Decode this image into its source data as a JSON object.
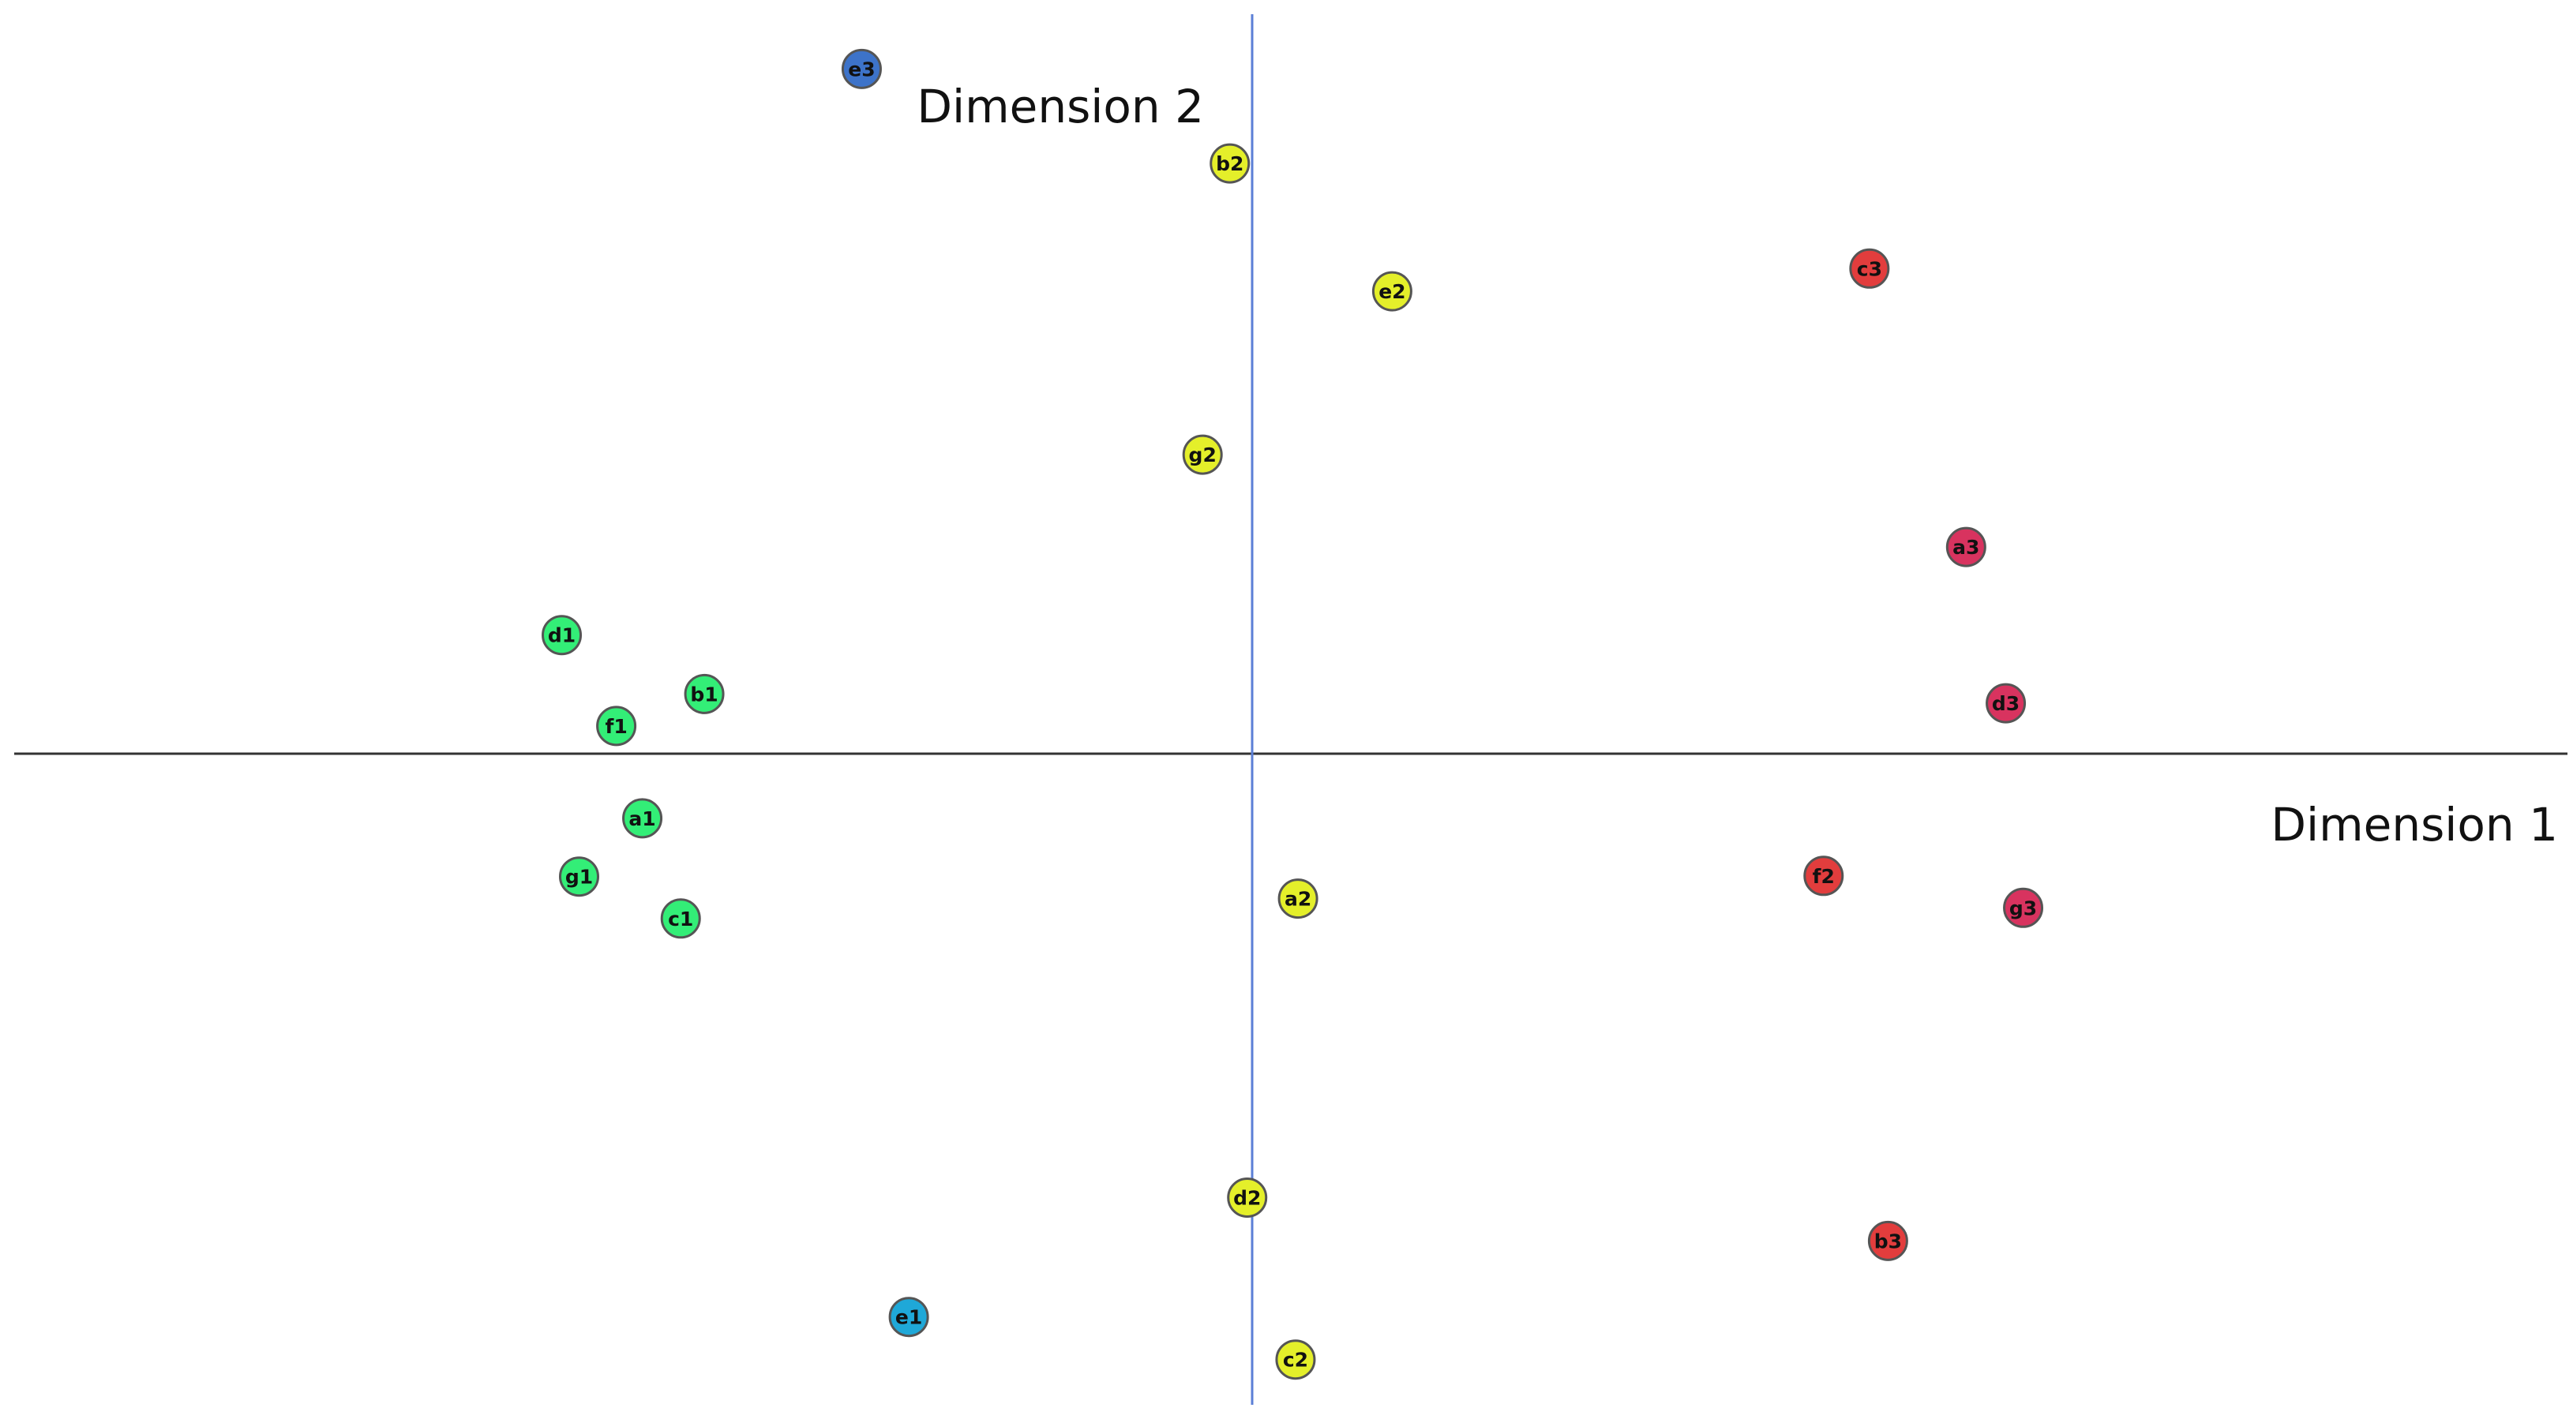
{
  "chart_data": {
    "type": "scatter",
    "xlabel": "Dimension 1",
    "ylabel": "Dimension 2",
    "xlim": [
      -1.0,
      1.06
    ],
    "ylim": [
      -1.05,
      1.19
    ],
    "grid": false,
    "colors": {
      "green": "#33ee77",
      "yellow": "#e4ef2a",
      "red": "#e23d3d",
      "crimson": "#d8335f",
      "blue": "#3d73c9",
      "cyan": "#1fa8d8",
      "vertical_axis": "#5b7fd6",
      "horizontal_axis": "#333333"
    },
    "points": [
      {
        "label": "e3",
        "x": -0.315,
        "y": 0.964,
        "color": "#3d73c9"
      },
      {
        "label": "b2",
        "x": -0.018,
        "y": 0.831,
        "color": "#e4ef2a"
      },
      {
        "label": "e2",
        "x": 0.113,
        "y": 0.651,
        "color": "#e4ef2a"
      },
      {
        "label": "c3",
        "x": 0.498,
        "y": 0.683,
        "color": "#e23d3d"
      },
      {
        "label": "g2",
        "x": -0.04,
        "y": 0.421,
        "color": "#e4ef2a"
      },
      {
        "label": "a3",
        "x": 0.576,
        "y": 0.291,
        "color": "#d8335f"
      },
      {
        "label": "d1",
        "x": -0.557,
        "y": 0.167,
        "color": "#33ee77"
      },
      {
        "label": "b1",
        "x": -0.442,
        "y": 0.084,
        "color": "#33ee77"
      },
      {
        "label": "f1",
        "x": -0.513,
        "y": 0.039,
        "color": "#33ee77"
      },
      {
        "label": "d3",
        "x": 0.608,
        "y": 0.071,
        "color": "#d8335f"
      },
      {
        "label": "a1",
        "x": -0.492,
        "y": -0.091,
        "color": "#33ee77"
      },
      {
        "label": "g1",
        "x": -0.543,
        "y": -0.173,
        "color": "#33ee77"
      },
      {
        "label": "c1",
        "x": -0.461,
        "y": -0.232,
        "color": "#33ee77"
      },
      {
        "label": "a2",
        "x": 0.037,
        "y": -0.204,
        "color": "#e4ef2a"
      },
      {
        "label": "f2",
        "x": 0.461,
        "y": -0.172,
        "color": "#e23d3d"
      },
      {
        "label": "g3",
        "x": 0.622,
        "y": -0.217,
        "color": "#d8335f"
      },
      {
        "label": "d2",
        "x": -0.004,
        "y": -0.625,
        "color": "#e4ef2a"
      },
      {
        "label": "b3",
        "x": 0.513,
        "y": -0.686,
        "color": "#e23d3d"
      },
      {
        "label": "e1",
        "x": -0.277,
        "y": -0.793,
        "color": "#1fa8d8"
      },
      {
        "label": "c2",
        "x": 0.035,
        "y": -0.853,
        "color": "#e4ef2a"
      }
    ]
  }
}
